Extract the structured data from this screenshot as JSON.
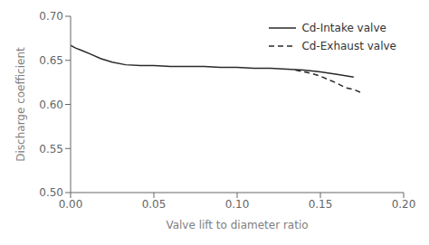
{
  "chart_data": {
    "type": "line",
    "xlabel": "Valve lift to diameter ratio",
    "ylabel": "Discharge coefficient",
    "xlim": [
      0.0,
      0.2
    ],
    "ylim": [
      0.5,
      0.7
    ],
    "xticks": [
      {
        "value": 0.0,
        "label": "0.00"
      },
      {
        "value": 0.05,
        "label": "0.05"
      },
      {
        "value": 0.1,
        "label": "0.10"
      },
      {
        "value": 0.15,
        "label": "0.15"
      },
      {
        "value": 0.2,
        "label": "0.20"
      }
    ],
    "yticks": [
      {
        "value": 0.5,
        "label": "0.50"
      },
      {
        "value": 0.55,
        "label": "0.55"
      },
      {
        "value": 0.6,
        "label": "0.60"
      },
      {
        "value": 0.65,
        "label": "0.65"
      },
      {
        "value": 0.7,
        "label": "0.70"
      }
    ],
    "series": [
      {
        "name": "Cd-Intake valve",
        "color": "#2a2a2a",
        "line_style": "solid",
        "x": [
          0.0,
          0.003,
          0.007,
          0.012,
          0.018,
          0.025,
          0.033,
          0.042,
          0.05,
          0.06,
          0.07,
          0.08,
          0.09,
          0.1,
          0.11,
          0.12,
          0.13,
          0.14,
          0.15,
          0.16,
          0.17
        ],
        "values": [
          0.667,
          0.664,
          0.661,
          0.657,
          0.652,
          0.648,
          0.645,
          0.644,
          0.644,
          0.643,
          0.643,
          0.643,
          0.642,
          0.642,
          0.641,
          0.641,
          0.64,
          0.639,
          0.637,
          0.634,
          0.631
        ]
      },
      {
        "name": "Cd-Exhaust valve",
        "color": "#2a2a2a",
        "line_style": "dashed",
        "x": [
          0.135,
          0.14,
          0.145,
          0.15,
          0.155,
          0.16,
          0.165,
          0.17,
          0.175
        ],
        "values": [
          0.639,
          0.637,
          0.635,
          0.632,
          0.628,
          0.624,
          0.619,
          0.617,
          0.613
        ]
      }
    ],
    "legend": "upper right"
  }
}
